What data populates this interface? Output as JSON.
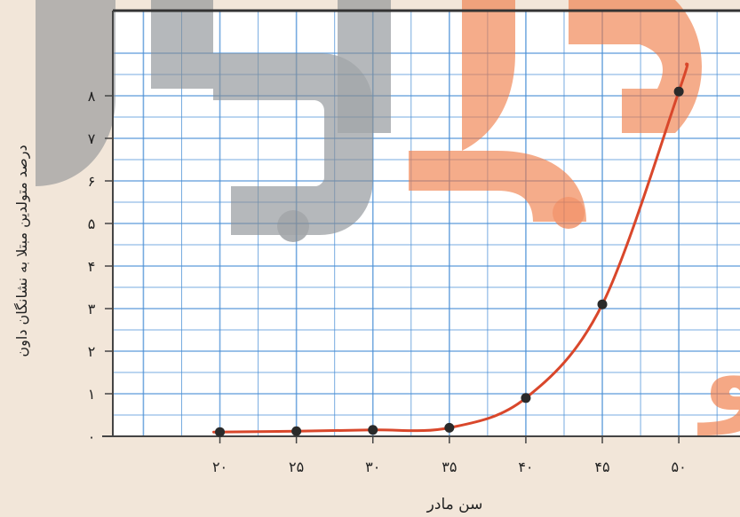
{
  "chart_data": {
    "type": "line",
    "x": [
      20,
      25,
      30,
      35,
      40,
      45,
      50
    ],
    "values": [
      0.1,
      0.12,
      0.15,
      0.2,
      0.9,
      3.1,
      8.1
    ],
    "xlim": [
      13,
      54
    ],
    "ylim": [
      0,
      9
    ],
    "x_ticks": [
      "۲۰",
      "۲۵",
      "۳۰",
      "۳۵",
      "۴۰",
      "۴۵",
      "۵۰"
    ],
    "y_ticks": [
      "۰",
      "۱",
      "۲",
      "۳",
      "۴",
      "۵",
      "۶",
      "۷",
      "۸"
    ],
    "xlabel": "سن مادر",
    "ylabel": "درصد متولدین مبتلا به نشانگان داون",
    "grid": true,
    "colors": {
      "curve": "#d9472b",
      "points": "#2a2a2a",
      "grid": "#4a8fd6",
      "axis": "#444444",
      "background": "#f2e6d9",
      "plot_background": "#ffffff",
      "watermark_gray": "#8a8e92",
      "watermark_orange": "#f07a45"
    }
  },
  "watermark": {
    "text": "درسیرمو"
  }
}
